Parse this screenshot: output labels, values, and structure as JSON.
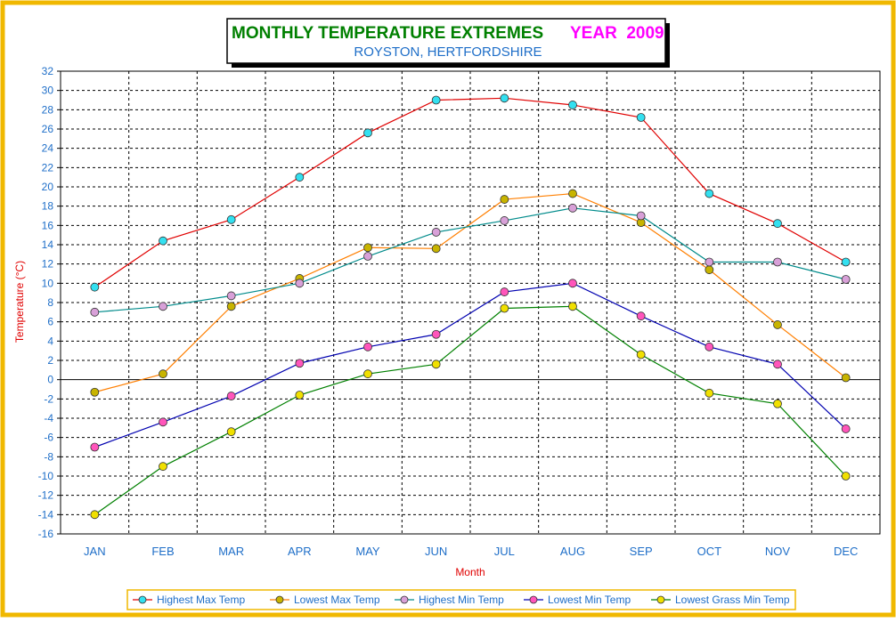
{
  "chart_data": {
    "type": "line",
    "title": "MONTHLY TEMPERATURE EXTREMES",
    "title_year": "YEAR  2009",
    "subtitle": "ROYSTON, HERTFORDSHIRE",
    "xlabel": "Month",
    "ylabel": "Temperature (°C)",
    "ylim": [
      -16,
      32
    ],
    "ytick_step": 2,
    "grid": true,
    "legend_position": "bottom",
    "categories": [
      "JAN",
      "FEB",
      "MAR",
      "APR",
      "MAY",
      "JUN",
      "JUL",
      "AUG",
      "SEP",
      "OCT",
      "NOV",
      "DEC"
    ],
    "series": [
      {
        "name": "Highest Max Temp",
        "line_color": "#e00000",
        "marker_color": "#33e0f0",
        "values": [
          9.6,
          14.4,
          16.6,
          21.0,
          25.6,
          29.0,
          29.2,
          28.5,
          27.2,
          19.3,
          16.2,
          12.2
        ]
      },
      {
        "name": "Lowest Max Temp",
        "line_color": "#ff7f00",
        "marker_color": "#c8b400",
        "values": [
          -1.3,
          0.6,
          7.6,
          10.5,
          13.7,
          13.6,
          18.7,
          19.3,
          16.3,
          11.4,
          5.7,
          0.2
        ]
      },
      {
        "name": "Highest Min Temp",
        "line_color": "#008b8b",
        "marker_color": "#d8a0d8",
        "values": [
          7.0,
          7.6,
          8.7,
          10.0,
          12.8,
          15.3,
          16.5,
          17.8,
          17.0,
          12.2,
          12.2,
          10.4
        ]
      },
      {
        "name": "Lowest Min Temp",
        "line_color": "#0000b0",
        "marker_color": "#ff55bb",
        "values": [
          -7.0,
          -4.4,
          -1.7,
          1.7,
          3.4,
          4.7,
          9.1,
          10.0,
          6.6,
          3.4,
          1.6,
          -5.1
        ]
      },
      {
        "name": "Lowest Grass Min Temp",
        "line_color": "#008000",
        "marker_color": "#f0e000",
        "values": [
          -14.0,
          -9.0,
          -5.4,
          -1.6,
          0.6,
          1.6,
          7.4,
          7.6,
          2.6,
          -1.4,
          -2.5,
          -10.0
        ]
      }
    ]
  },
  "colors": {
    "frame": "#f0b800",
    "title": "#008000",
    "year": "#ff00ff",
    "subtitle": "#1e6ec8",
    "axis_text": "#1e6ec8",
    "axis_label": "#e00000",
    "legend_border": "#f0b800"
  }
}
